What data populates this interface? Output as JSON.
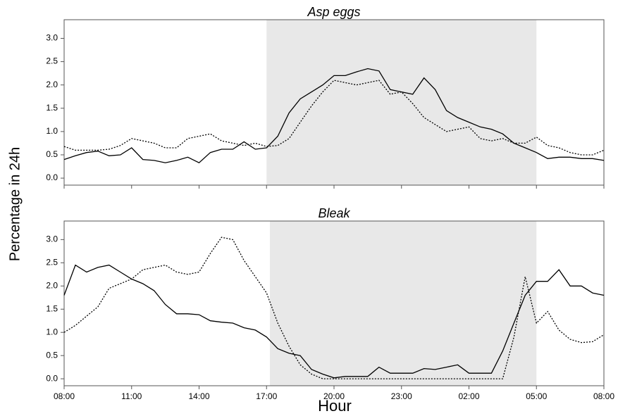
{
  "ylabel": "Percentage in 24h",
  "xlabel": "Hour",
  "xlim": [
    0,
    24
  ],
  "xticks": [
    {
      "value": 0,
      "label": "08:00"
    },
    {
      "value": 3,
      "label": "11:00"
    },
    {
      "value": 6,
      "label": "14:00"
    },
    {
      "value": 9,
      "label": "17:00"
    },
    {
      "value": 12,
      "label": "20:00"
    },
    {
      "value": 15,
      "label": "23:00"
    },
    {
      "value": 18,
      "label": "02:00"
    },
    {
      "value": 21,
      "label": "05:00"
    },
    {
      "value": 24,
      "label": "08:00"
    }
  ],
  "chart_data": [
    {
      "type": "line",
      "title": "Asp eggs",
      "shade": [
        9,
        21
      ],
      "shade_color": "#e8e8e8",
      "ylim": [
        -0.15,
        3.4
      ],
      "yticks": [
        {
          "value": 0,
          "label": "0.0"
        },
        0.5,
        {
          "value": 1,
          "label": "1.0"
        },
        1.5,
        {
          "value": 2,
          "label": "2.0"
        },
        2.5,
        {
          "value": 3,
          "label": "3.0"
        }
      ],
      "x": [
        0,
        0.5,
        1,
        1.5,
        2,
        2.5,
        3,
        3.5,
        4,
        4.5,
        5,
        5.5,
        6,
        6.5,
        7,
        7.5,
        8,
        8.5,
        9,
        9.5,
        10,
        10.5,
        11,
        11.5,
        12,
        12.5,
        13,
        13.5,
        14,
        14.5,
        15,
        15.5,
        16,
        16.5,
        17,
        17.5,
        18,
        18.5,
        19,
        19.5,
        20,
        20.5,
        21,
        21.5,
        22,
        22.5,
        23,
        23.5,
        24
      ],
      "series": [
        {
          "color": "#000000",
          "style": "solid",
          "values": [
            0.4,
            0.48,
            0.55,
            0.58,
            0.48,
            0.5,
            0.65,
            0.4,
            0.38,
            0.33,
            0.38,
            0.45,
            0.33,
            0.55,
            0.62,
            0.62,
            0.78,
            0.62,
            0.65,
            0.9,
            1.4,
            1.7,
            1.85,
            2.0,
            2.2,
            2.2,
            2.28,
            2.35,
            2.3,
            1.9,
            1.85,
            1.8,
            2.15,
            1.9,
            1.45,
            1.3,
            1.2,
            1.1,
            1.05,
            0.95,
            0.75,
            0.65,
            0.55,
            0.42,
            0.45,
            0.45,
            0.42,
            0.42,
            0.38
          ]
        },
        {
          "color": "#000000",
          "style": "dotted",
          "values": [
            0.68,
            0.6,
            0.6,
            0.6,
            0.62,
            0.7,
            0.85,
            0.8,
            0.75,
            0.65,
            0.65,
            0.85,
            0.9,
            0.95,
            0.8,
            0.75,
            0.7,
            0.75,
            0.68,
            0.7,
            0.85,
            1.2,
            1.55,
            1.85,
            2.1,
            2.05,
            2.0,
            2.05,
            2.1,
            1.8,
            1.85,
            1.6,
            1.3,
            1.15,
            1.0,
            1.05,
            1.1,
            0.85,
            0.8,
            0.85,
            0.75,
            0.75,
            0.88,
            0.7,
            0.65,
            0.55,
            0.5,
            0.5,
            0.6
          ]
        }
      ]
    },
    {
      "type": "line",
      "title": "Bleak",
      "shade": [
        9.15,
        21
      ],
      "shade_color": "#e8e8e8",
      "ylim": [
        -0.15,
        3.4
      ],
      "yticks": [
        {
          "value": 0,
          "label": "0.0"
        },
        0.5,
        {
          "value": 1,
          "label": "1.0"
        },
        1.5,
        {
          "value": 2,
          "label": "2.0"
        },
        2.5,
        {
          "value": 3,
          "label": "3.0"
        }
      ],
      "x": [
        0,
        0.5,
        1,
        1.5,
        2,
        2.5,
        3,
        3.5,
        4,
        4.5,
        5,
        5.5,
        6,
        6.5,
        7,
        7.5,
        8,
        8.5,
        9,
        9.5,
        10,
        10.5,
        11,
        11.5,
        12,
        12.5,
        13,
        13.5,
        14,
        14.5,
        15,
        15.5,
        16,
        16.5,
        17,
        17.5,
        18,
        18.5,
        19,
        19.5,
        20,
        20.5,
        21,
        21.5,
        22,
        22.5,
        23,
        23.5,
        24
      ],
      "series": [
        {
          "color": "#000000",
          "style": "solid",
          "values": [
            1.8,
            2.45,
            2.3,
            2.4,
            2.45,
            2.3,
            2.15,
            2.05,
            1.9,
            1.6,
            1.4,
            1.4,
            1.38,
            1.25,
            1.22,
            1.2,
            1.1,
            1.05,
            0.9,
            0.65,
            0.55,
            0.5,
            0.2,
            0.1,
            0.02,
            0.05,
            0.05,
            0.05,
            0.25,
            0.12,
            0.12,
            0.12,
            0.22,
            0.2,
            0.25,
            0.3,
            0.12,
            0.12,
            0.12,
            0.6,
            1.2,
            1.8,
            2.1,
            2.1,
            2.35,
            2.0,
            2.0,
            1.85,
            1.8
          ]
        },
        {
          "color": "#000000",
          "style": "dotted",
          "values": [
            1.0,
            1.15,
            1.35,
            1.55,
            1.95,
            2.05,
            2.15,
            2.35,
            2.4,
            2.45,
            2.3,
            2.25,
            2.3,
            2.7,
            3.05,
            3.0,
            2.55,
            2.2,
            1.85,
            1.2,
            0.7,
            0.3,
            0.1,
            0.0,
            0,
            0,
            0,
            0,
            0,
            0,
            0,
            0,
            0,
            0,
            0,
            0,
            0,
            0,
            0,
            0,
            0.9,
            2.2,
            1.2,
            1.45,
            1.05,
            0.85,
            0.78,
            0.8,
            0.95
          ]
        }
      ]
    }
  ]
}
